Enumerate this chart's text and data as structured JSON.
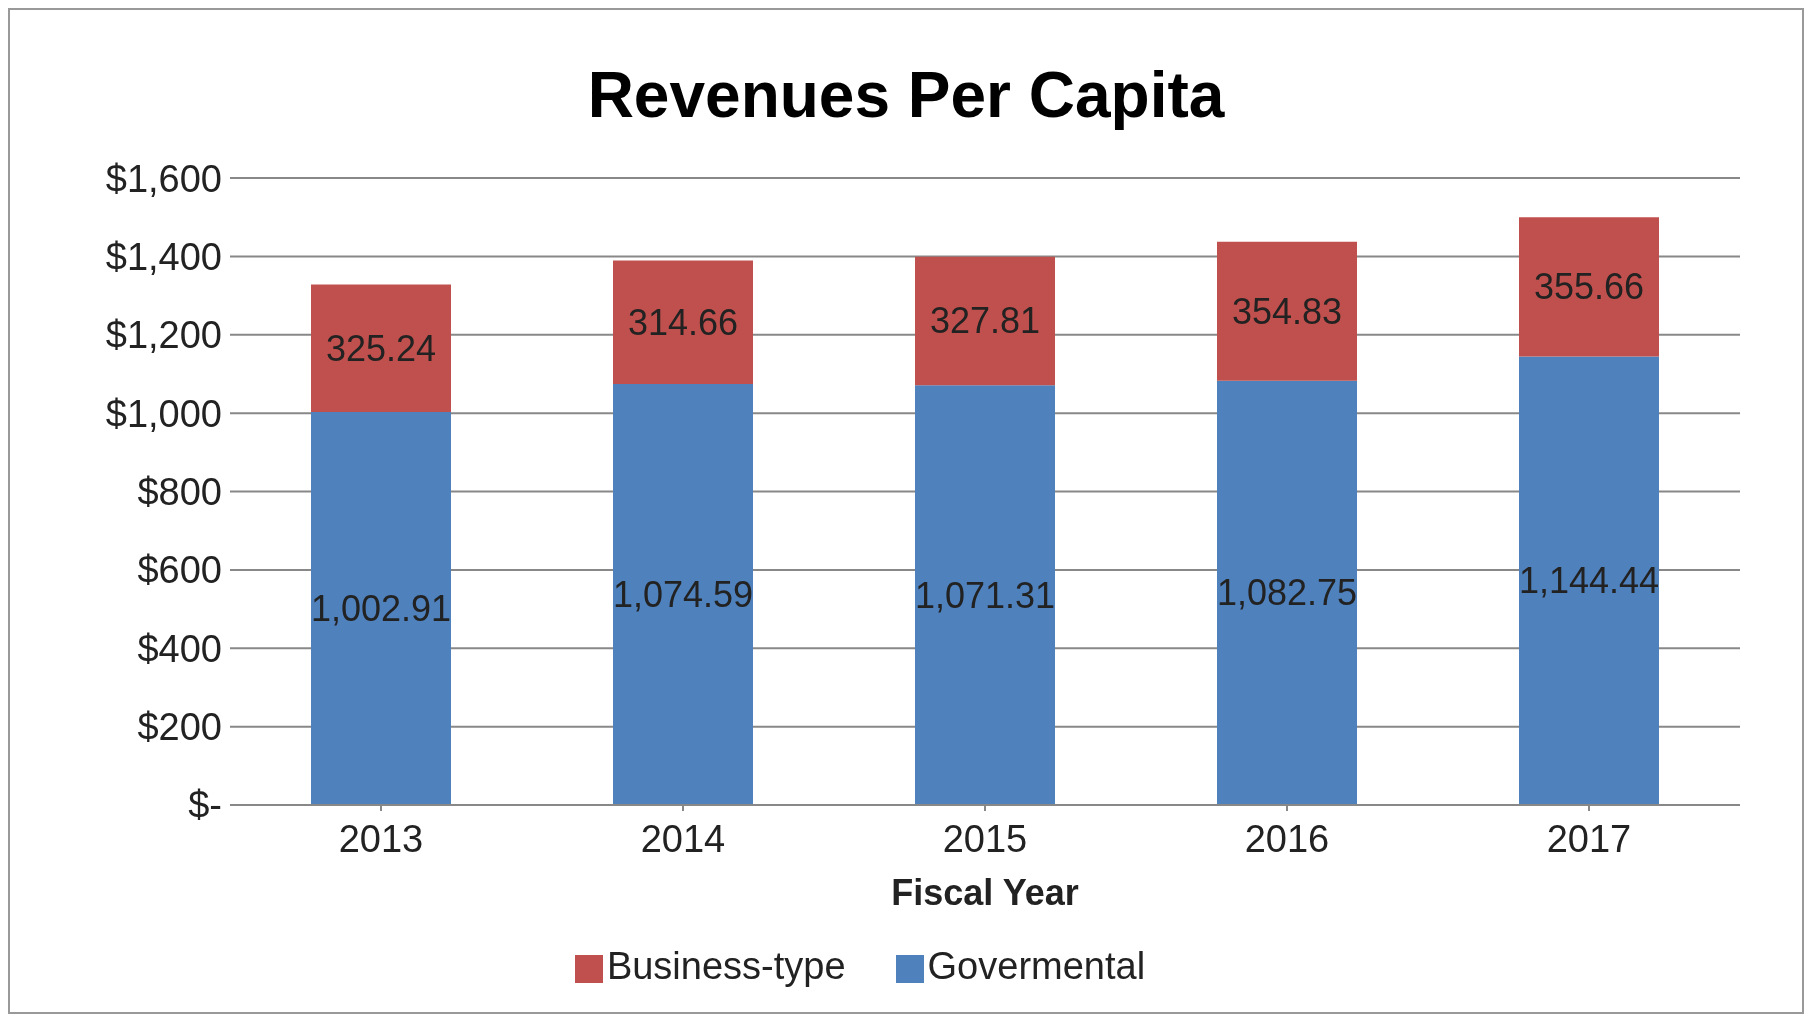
{
  "chart_data": {
    "type": "bar",
    "title": "Revenues Per Capita",
    "xlabel": "Fiscal Year",
    "categories": [
      "2013",
      "2014",
      "2015",
      "2016",
      "2017"
    ],
    "stacked": true,
    "series": [
      {
        "name": "Govermental",
        "color": "#4f81bd",
        "values": [
          1002.91,
          1074.59,
          1071.31,
          1082.75,
          1144.44
        ],
        "value_labels": [
          "1,002.91",
          "1,074.59",
          "1,071.31",
          "1,082.75",
          "1,144.44"
        ]
      },
      {
        "name": "Business-type",
        "color": "#c0504d",
        "values": [
          325.24,
          314.66,
          327.81,
          354.83,
          355.66
        ],
        "value_labels": [
          "325.24",
          "314.66",
          "327.81",
          "354.83",
          "355.66"
        ]
      }
    ],
    "ylim": [
      0,
      1600
    ],
    "yticks": [
      {
        "value": 0,
        "label": "$-"
      },
      {
        "value": 200,
        "label": "$200"
      },
      {
        "value": 400,
        "label": "$400"
      },
      {
        "value": 600,
        "label": "$600"
      },
      {
        "value": 800,
        "label": "$800"
      },
      {
        "value": 1000,
        "label": "$1,000"
      },
      {
        "value": 1200,
        "label": "$1,200"
      },
      {
        "value": 1400,
        "label": "$1,400"
      },
      {
        "value": 1600,
        "label": "$1,600"
      }
    ],
    "grid": "y",
    "legend": "bottom"
  }
}
